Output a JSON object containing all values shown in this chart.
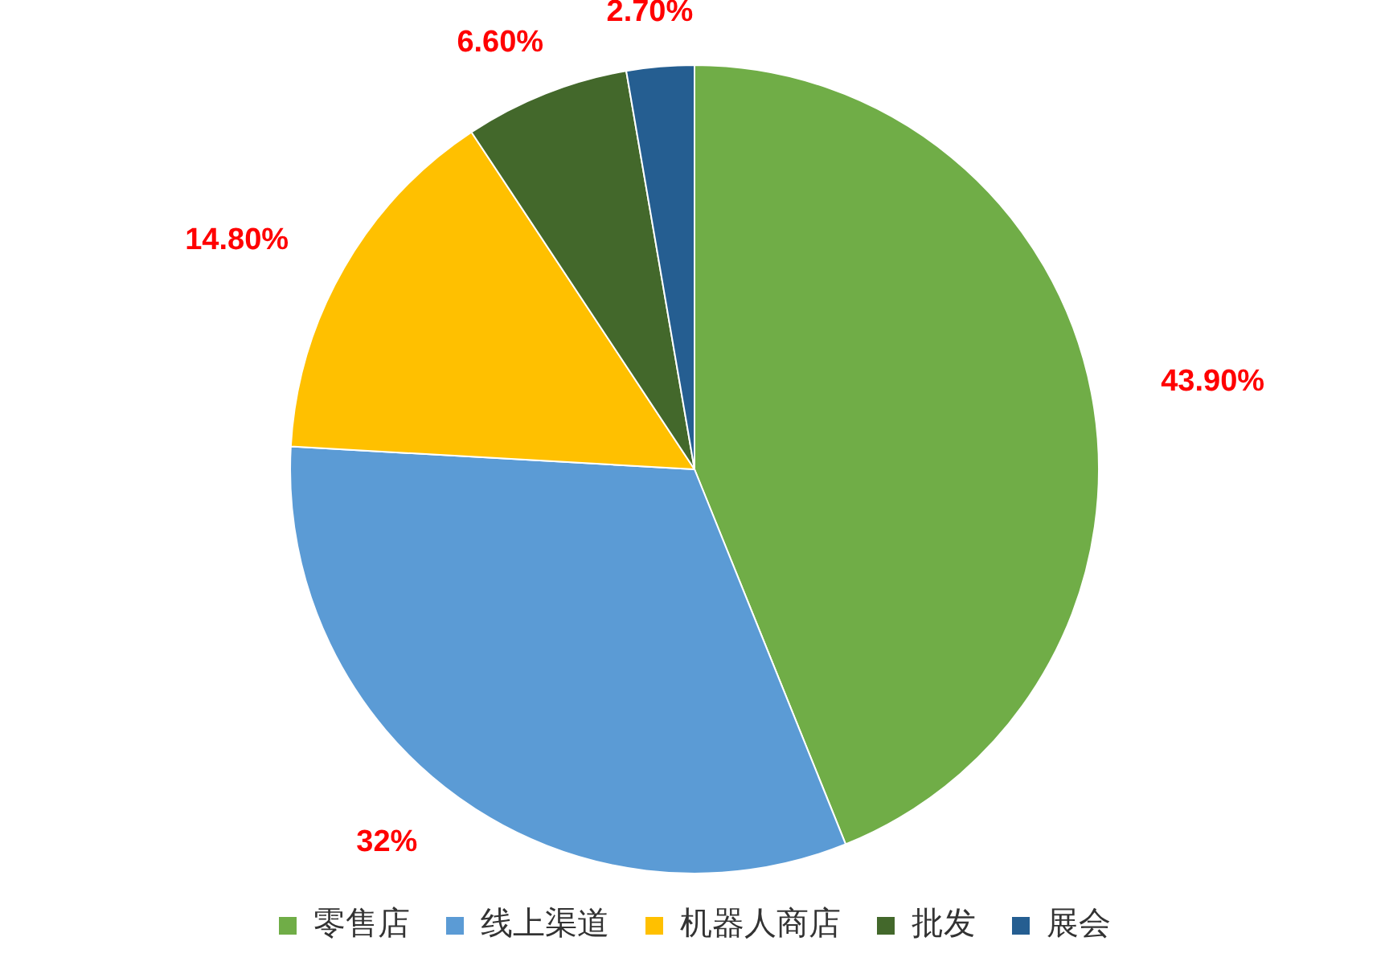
{
  "chart_data": {
    "type": "pie",
    "categories": [
      "零售店",
      "线上渠道",
      "机器人商店",
      "批发",
      "展会"
    ],
    "values": [
      43.9,
      32,
      14.8,
      6.6,
      2.7
    ],
    "value_labels": [
      "43.90%",
      "32%",
      "14.80%",
      "6.60%",
      "2.70%"
    ],
    "colors": [
      "#70ad47",
      "#5b9bd5",
      "#ffc000",
      "#43682b",
      "#255e91"
    ],
    "legend": "bottom"
  }
}
